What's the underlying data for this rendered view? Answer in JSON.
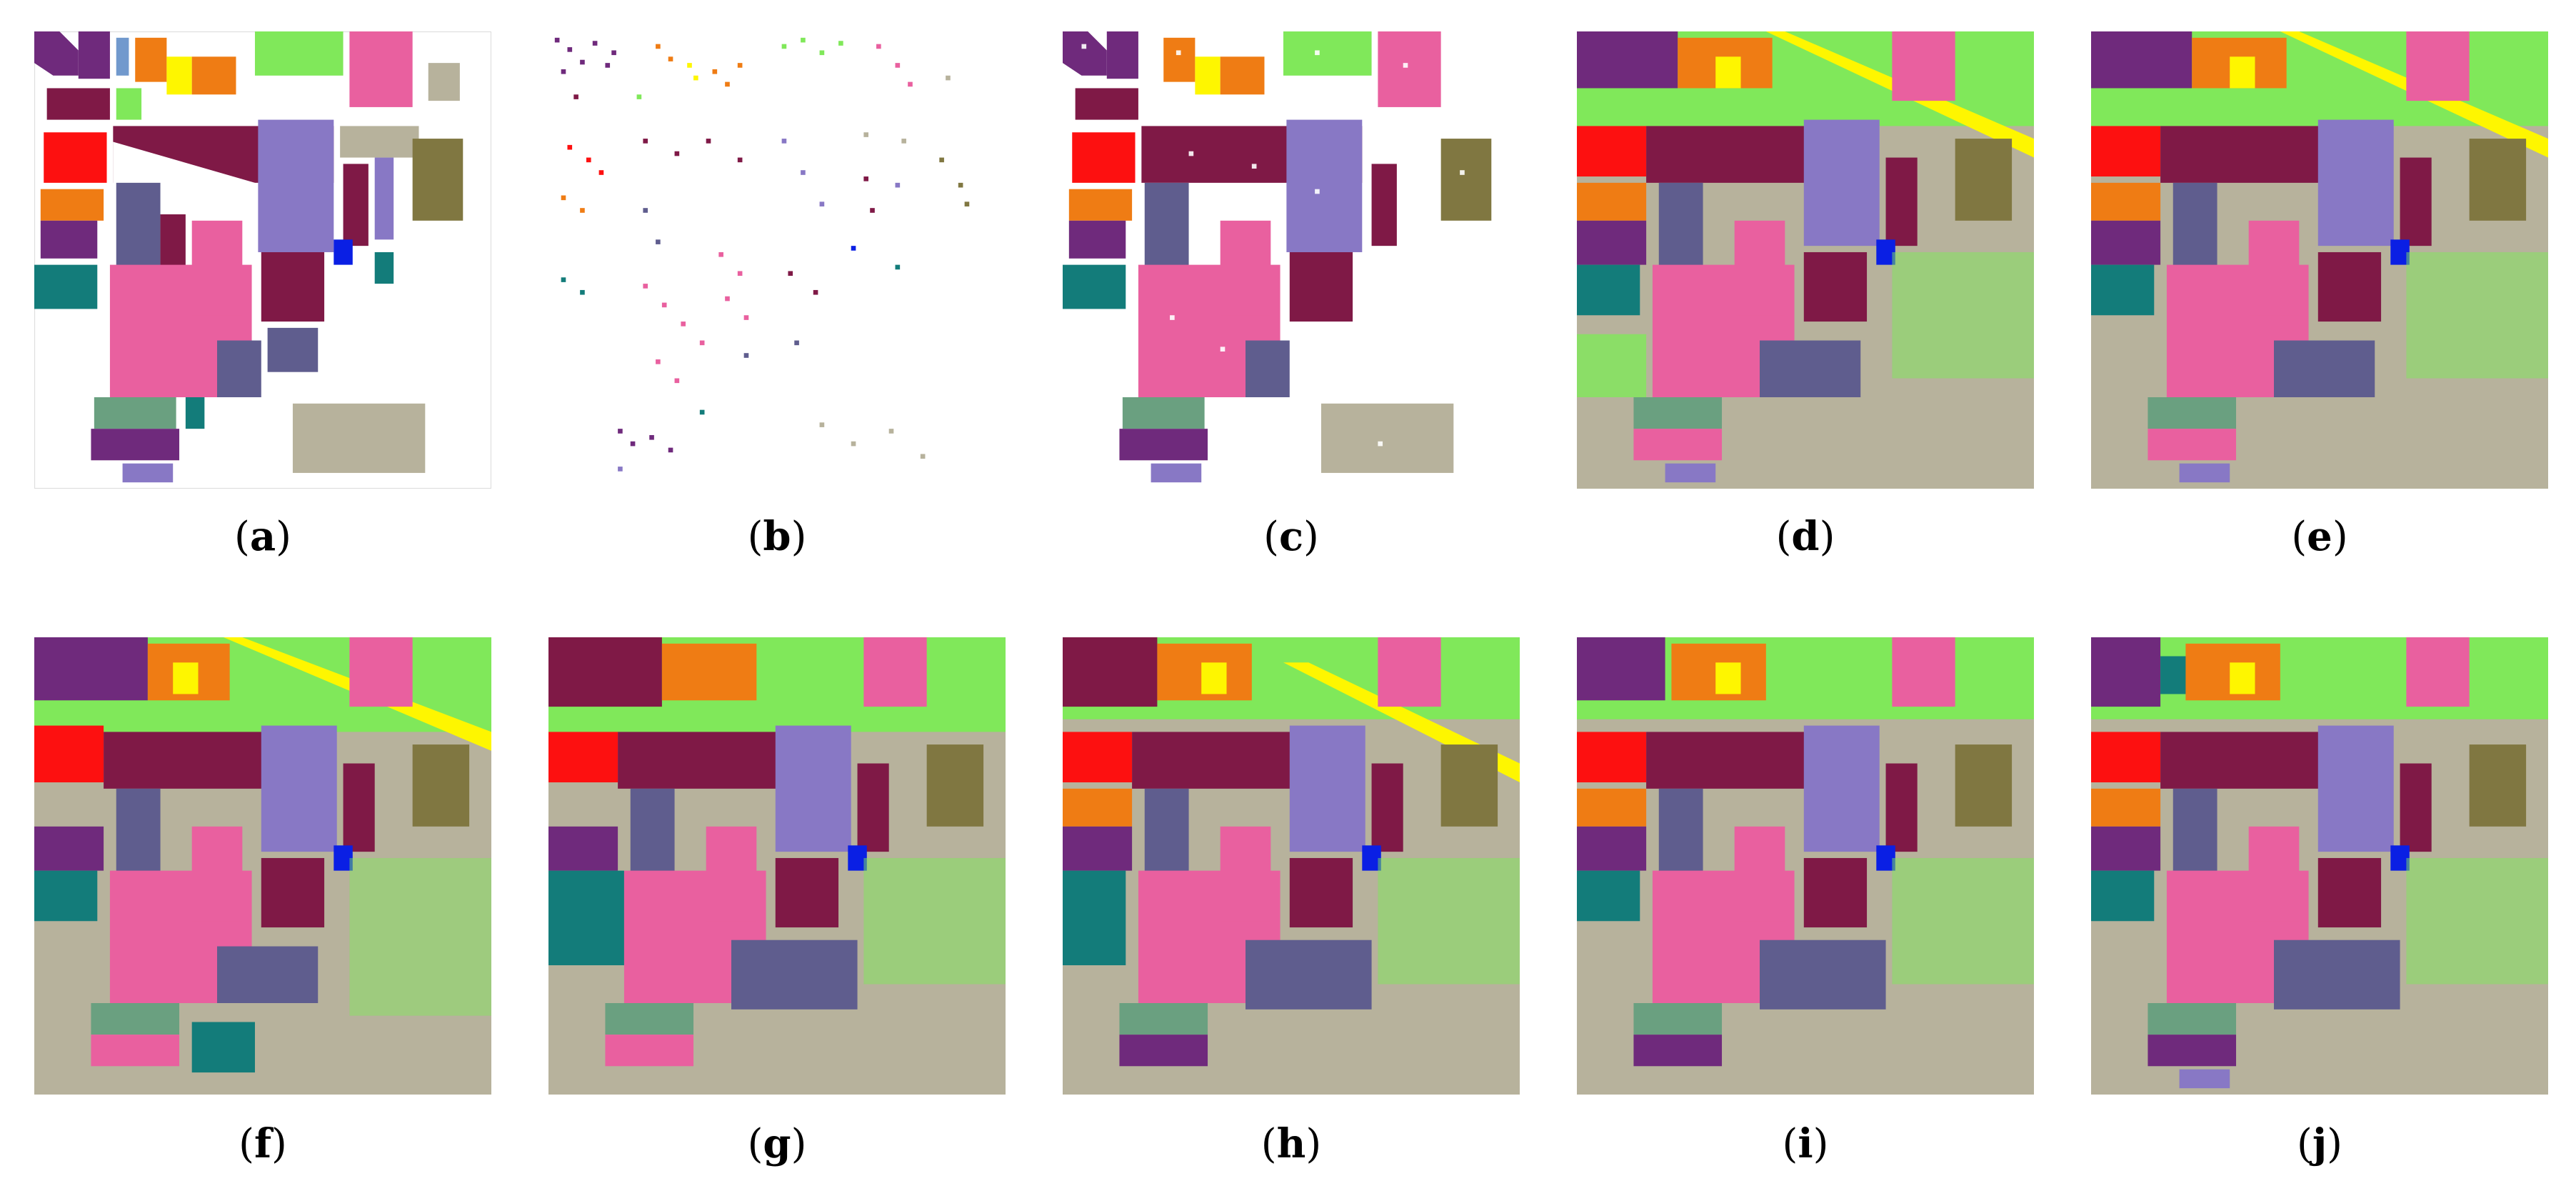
{
  "panels": [
    {
      "label": "a",
      "kind": "ground-truth"
    },
    {
      "label": "b",
      "kind": "train-samples"
    },
    {
      "label": "c",
      "kind": "test-samples"
    },
    {
      "label": "d",
      "kind": "classification-map"
    },
    {
      "label": "e",
      "kind": "classification-map"
    },
    {
      "label": "f",
      "kind": "classification-map"
    },
    {
      "label": "g",
      "kind": "classification-map"
    },
    {
      "label": "h",
      "kind": "classification-map"
    },
    {
      "label": "i",
      "kind": "classification-map"
    },
    {
      "label": "j",
      "kind": "classification-map"
    }
  ],
  "class_colors": [
    "#7f1946",
    "#e9609f",
    "#b7b29c",
    "#5f5d8e",
    "#8878c5",
    "#ef7c14",
    "#80e85a",
    "#6f2a7c",
    "#137c7a",
    "#fd1010",
    "#807741",
    "#fef600",
    "#0a1fe4",
    "#4d7fc1",
    "#6aa080",
    "#dedede"
  ]
}
